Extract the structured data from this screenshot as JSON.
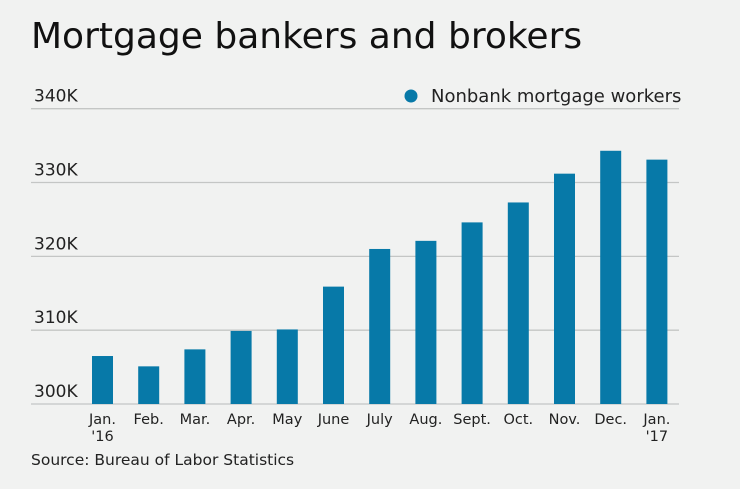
{
  "title": "Mortgage bankers and brokers",
  "source": "Source: Bureau of Labor Statistics",
  "chart_data": {
    "type": "bar",
    "title": "Mortgage bankers and brokers",
    "categories": [
      [
        "Jan.",
        "'16"
      ],
      [
        "Feb."
      ],
      [
        "Mar."
      ],
      [
        "Apr."
      ],
      [
        "May"
      ],
      [
        "June"
      ],
      [
        "July"
      ],
      [
        "Aug."
      ],
      [
        "Sept."
      ],
      [
        "Oct."
      ],
      [
        "Nov."
      ],
      [
        "Dec."
      ],
      [
        "Jan.",
        "'17"
      ]
    ],
    "series": [
      {
        "name": "Nonbank mortgage workers",
        "color": "#0779a8",
        "values": [
          306.5,
          305.1,
          307.4,
          309.9,
          310.1,
          315.9,
          321.0,
          322.1,
          324.6,
          327.3,
          331.2,
          334.3,
          333.1
        ]
      }
    ],
    "unit": "thousands",
    "ylim": [
      300,
      340
    ],
    "yticks": [
      300,
      310,
      320,
      330,
      340
    ],
    "ytick_labels": [
      "300K",
      "310K",
      "320K",
      "330K",
      "340K"
    ],
    "grid": "horizontal",
    "legend_position": "top-right",
    "xlabel": "",
    "ylabel": ""
  }
}
